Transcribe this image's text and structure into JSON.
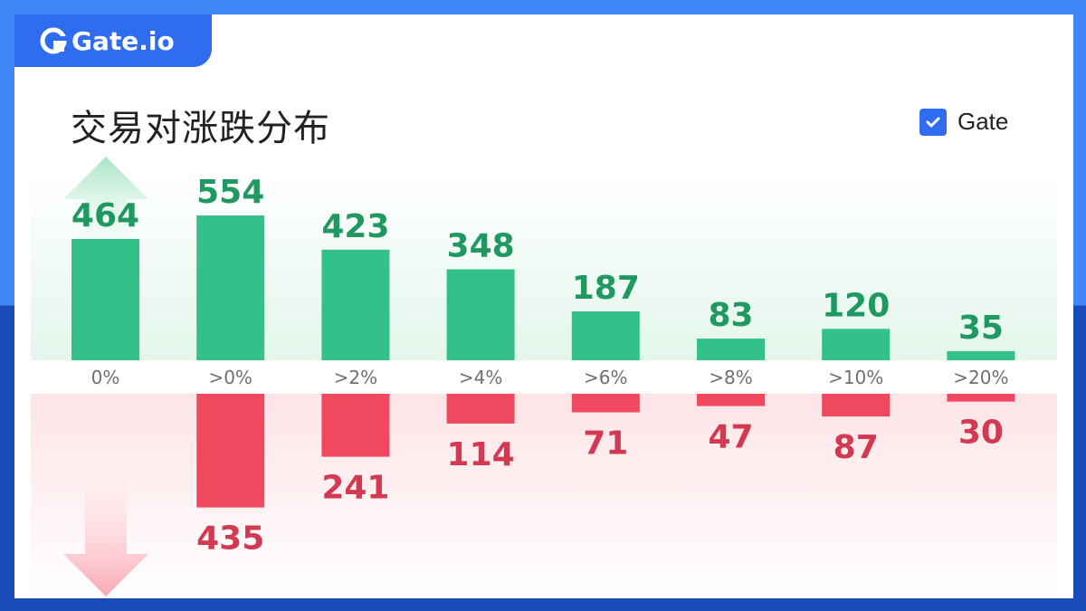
{
  "brand": {
    "logo_text": "Gate.io"
  },
  "title": "交易对涨跌分布",
  "legend": {
    "label": "Gate",
    "checked": true,
    "color": "#2f6cf0"
  },
  "colors": {
    "up": "#34c08b",
    "down": "#f0485f",
    "up_text": "#1f9960",
    "down_text": "#d23a52"
  },
  "chart_data": {
    "type": "bar",
    "categories": [
      "0%",
      ">0%",
      ">2%",
      ">4%",
      ">6%",
      ">8%",
      ">10%",
      ">20%"
    ],
    "series": [
      {
        "name": "up",
        "values": [
          464,
          554,
          423,
          348,
          187,
          83,
          120,
          35
        ]
      },
      {
        "name": "down",
        "values": [
          0,
          435,
          241,
          114,
          71,
          47,
          87,
          30
        ]
      }
    ],
    "up_value_labels": [
      "464",
      "554",
      "423",
      "348",
      "187",
      "83",
      "120",
      "35"
    ],
    "down_value_labels": [
      "",
      "435",
      "241",
      "114",
      "71",
      "47",
      "87",
      "30"
    ],
    "title": "交易对涨跌分布",
    "xlabel": "",
    "ylabel": "",
    "grid": false,
    "legend_position": "top-right"
  }
}
